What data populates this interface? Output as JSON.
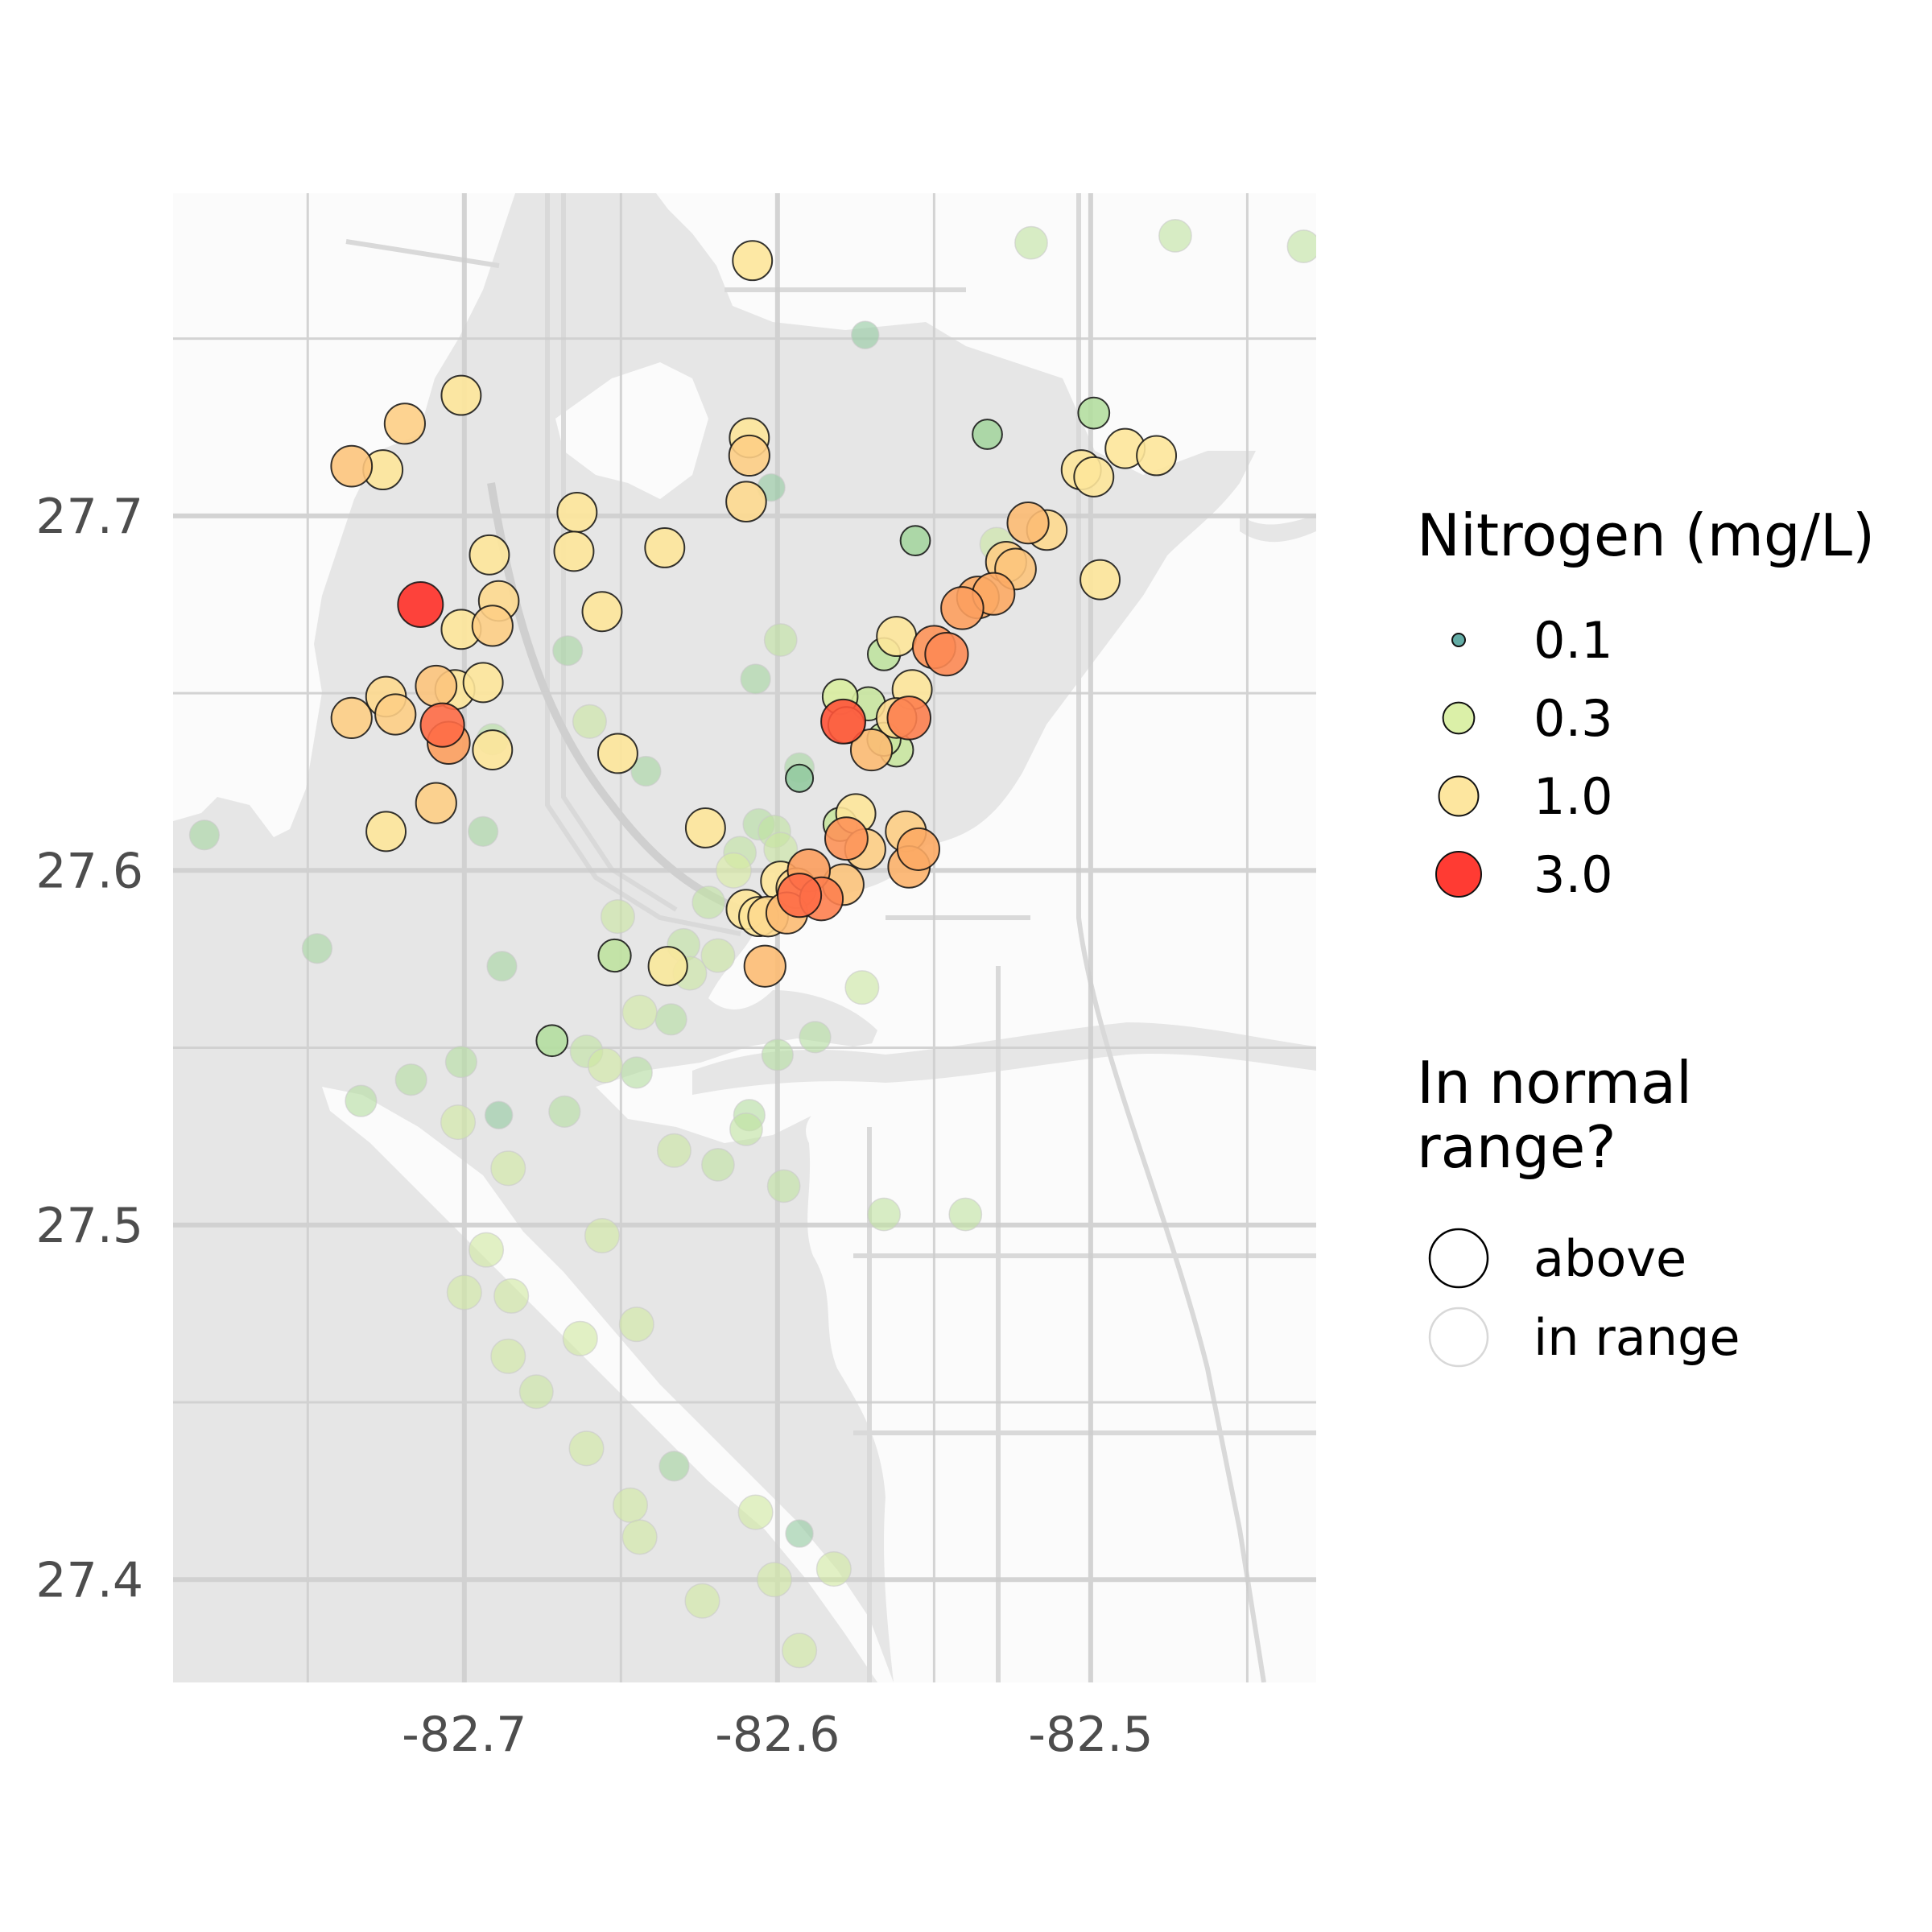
{
  "chart_data": {
    "type": "scatter",
    "xlim": [
      -82.793,
      -82.428
    ],
    "ylim": [
      27.371,
      27.791
    ],
    "x_ticks": [
      {
        "value": -82.7,
        "label": "-82.7"
      },
      {
        "value": -82.6,
        "label": "-82.6"
      },
      {
        "value": -82.5,
        "label": "-82.5"
      }
    ],
    "y_ticks": [
      {
        "value": 27.4,
        "label": "27.4"
      },
      {
        "value": 27.5,
        "label": "27.5"
      },
      {
        "value": 27.6,
        "label": "27.6"
      },
      {
        "value": 27.7,
        "label": "27.7"
      }
    ],
    "grid": true,
    "legend_placement": "right",
    "legends": {
      "size_color": {
        "title": "Nitrogen (mg/L)",
        "entries": [
          {
            "label": "0.1",
            "value": 0.1,
            "color": "#5ba8a0"
          },
          {
            "label": "0.3",
            "value": 0.3,
            "color": "#d9efa3"
          },
          {
            "label": "1.0",
            "value": 1.0,
            "color": "#fde59a"
          },
          {
            "label": "3.0",
            "value": 3.0,
            "color": "#ff3028"
          }
        ]
      },
      "outline": {
        "title_lines": [
          "In normal",
          "range?"
        ],
        "entries": [
          {
            "label": "above",
            "stroke": "#000000"
          },
          {
            "label": "in range",
            "stroke": "#d8d8d8"
          }
        ]
      }
    },
    "points": [
      {
        "lon": -82.608,
        "lat": 27.772,
        "n": 1.0,
        "above": true
      },
      {
        "lon": -82.572,
        "lat": 27.751,
        "n": 0.2,
        "above": false
      },
      {
        "lon": -82.519,
        "lat": 27.777,
        "n": 0.35,
        "above": false
      },
      {
        "lon": -82.473,
        "lat": 27.779,
        "n": 0.35,
        "above": false
      },
      {
        "lon": -82.432,
        "lat": 27.776,
        "n": 0.35,
        "above": false
      },
      {
        "lon": -82.701,
        "lat": 27.734,
        "n": 1.0,
        "above": true
      },
      {
        "lon": -82.719,
        "lat": 27.726,
        "n": 1.2,
        "above": true
      },
      {
        "lon": -82.736,
        "lat": 27.714,
        "n": 1.3,
        "above": true
      },
      {
        "lon": -82.726,
        "lat": 27.713,
        "n": 1.0,
        "above": true
      },
      {
        "lon": -82.609,
        "lat": 27.722,
        "n": 1.0,
        "above": true
      },
      {
        "lon": -82.609,
        "lat": 27.717,
        "n": 1.2,
        "above": true
      },
      {
        "lon": -82.602,
        "lat": 27.708,
        "n": 0.2,
        "above": false
      },
      {
        "lon": -82.61,
        "lat": 27.704,
        "n": 1.1,
        "above": true
      },
      {
        "lon": -82.533,
        "lat": 27.723,
        "n": 0.25,
        "above": true
      },
      {
        "lon": -82.499,
        "lat": 27.729,
        "n": 0.3,
        "above": true
      },
      {
        "lon": -82.489,
        "lat": 27.719,
        "n": 1.0,
        "above": true
      },
      {
        "lon": -82.479,
        "lat": 27.717,
        "n": 1.0,
        "above": true
      },
      {
        "lon": -82.503,
        "lat": 27.713,
        "n": 1.0,
        "above": true
      },
      {
        "lon": -82.499,
        "lat": 27.711,
        "n": 1.0,
        "above": true
      },
      {
        "lon": -82.664,
        "lat": 27.701,
        "n": 1.0,
        "above": true
      },
      {
        "lon": -82.665,
        "lat": 27.69,
        "n": 1.0,
        "above": true
      },
      {
        "lon": -82.636,
        "lat": 27.691,
        "n": 1.0,
        "above": true
      },
      {
        "lon": -82.692,
        "lat": 27.689,
        "n": 1.0,
        "above": true
      },
      {
        "lon": -82.556,
        "lat": 27.693,
        "n": 0.25,
        "above": true
      },
      {
        "lon": -82.53,
        "lat": 27.692,
        "n": 0.4,
        "above": false
      },
      {
        "lon": -82.52,
        "lat": 27.698,
        "n": 1.4,
        "above": true
      },
      {
        "lon": -82.514,
        "lat": 27.696,
        "n": 1.1,
        "above": true
      },
      {
        "lon": -82.527,
        "lat": 27.687,
        "n": 1.2,
        "above": true
      },
      {
        "lon": -82.524,
        "lat": 27.685,
        "n": 1.3,
        "above": true
      },
      {
        "lon": -82.497,
        "lat": 27.682,
        "n": 1.0,
        "above": true
      },
      {
        "lon": -82.714,
        "lat": 27.675,
        "n": 3.0,
        "above": true
      },
      {
        "lon": -82.689,
        "lat": 27.676,
        "n": 1.1,
        "above": true
      },
      {
        "lon": -82.656,
        "lat": 27.673,
        "n": 1.0,
        "above": true
      },
      {
        "lon": -82.536,
        "lat": 27.677,
        "n": 1.6,
        "above": true
      },
      {
        "lon": -82.541,
        "lat": 27.674,
        "n": 1.7,
        "above": true
      },
      {
        "lon": -82.531,
        "lat": 27.678,
        "n": 1.6,
        "above": true
      },
      {
        "lon": -82.701,
        "lat": 27.668,
        "n": 1.0,
        "above": true
      },
      {
        "lon": -82.691,
        "lat": 27.669,
        "n": 1.2,
        "above": true
      },
      {
        "lon": -82.667,
        "lat": 27.662,
        "n": 0.25,
        "above": false
      },
      {
        "lon": -82.599,
        "lat": 27.665,
        "n": 0.35,
        "above": false
      },
      {
        "lon": -82.566,
        "lat": 27.661,
        "n": 0.35,
        "above": true
      },
      {
        "lon": -82.562,
        "lat": 27.666,
        "n": 1.0,
        "above": true
      },
      {
        "lon": -82.55,
        "lat": 27.663,
        "n": 1.8,
        "above": true
      },
      {
        "lon": -82.546,
        "lat": 27.661,
        "n": 1.9,
        "above": true
      },
      {
        "lon": -82.607,
        "lat": 27.654,
        "n": 0.25,
        "above": false
      },
      {
        "lon": -82.709,
        "lat": 27.652,
        "n": 1.3,
        "above": true
      },
      {
        "lon": -82.703,
        "lat": 27.651,
        "n": 1.0,
        "above": true
      },
      {
        "lon": -82.694,
        "lat": 27.653,
        "n": 1.0,
        "above": true
      },
      {
        "lon": -82.725,
        "lat": 27.649,
        "n": 1.1,
        "above": true
      },
      {
        "lon": -82.722,
        "lat": 27.644,
        "n": 1.2,
        "above": true
      },
      {
        "lon": -82.736,
        "lat": 27.643,
        "n": 1.2,
        "above": true
      },
      {
        "lon": -82.707,
        "lat": 27.641,
        "n": 2.2,
        "above": true
      },
      {
        "lon": -82.705,
        "lat": 27.636,
        "n": 1.7,
        "above": true
      },
      {
        "lon": -82.691,
        "lat": 27.634,
        "n": 1.0,
        "above": true
      },
      {
        "lon": -82.691,
        "lat": 27.637,
        "n": 0.3,
        "above": false
      },
      {
        "lon": -82.58,
        "lat": 27.649,
        "n": 0.5,
        "above": true
      },
      {
        "lon": -82.579,
        "lat": 27.642,
        "n": 2.5,
        "above": true
      },
      {
        "lon": -82.578,
        "lat": 27.641,
        "n": 0.6,
        "above": true
      },
      {
        "lon": -82.571,
        "lat": 27.647,
        "n": 0.4,
        "above": true
      },
      {
        "lon": -82.557,
        "lat": 27.651,
        "n": 1.0,
        "above": true
      },
      {
        "lon": -82.562,
        "lat": 27.643,
        "n": 1.1,
        "above": true
      },
      {
        "lon": -82.558,
        "lat": 27.643,
        "n": 2.0,
        "above": true
      },
      {
        "lon": -82.562,
        "lat": 27.634,
        "n": 0.4,
        "above": true
      },
      {
        "lon": -82.566,
        "lat": 27.637,
        "n": 0.4,
        "above": true
      },
      {
        "lon": -82.57,
        "lat": 27.634,
        "n": 1.4,
        "above": true
      },
      {
        "lon": -82.66,
        "lat": 27.642,
        "n": 0.4,
        "above": false
      },
      {
        "lon": -82.651,
        "lat": 27.633,
        "n": 1.0,
        "above": true
      },
      {
        "lon": -82.642,
        "lat": 27.628,
        "n": 0.25,
        "above": false
      },
      {
        "lon": -82.593,
        "lat": 27.629,
        "n": 0.25,
        "above": false
      },
      {
        "lon": -82.593,
        "lat": 27.626,
        "n": 0.2,
        "above": true
      },
      {
        "lon": -82.709,
        "lat": 27.619,
        "n": 1.2,
        "above": true
      },
      {
        "lon": -82.725,
        "lat": 27.611,
        "n": 1.0,
        "above": true
      },
      {
        "lon": -82.694,
        "lat": 27.611,
        "n": 0.25,
        "above": false
      },
      {
        "lon": -82.783,
        "lat": 27.61,
        "n": 0.25,
        "above": false
      },
      {
        "lon": -82.623,
        "lat": 27.612,
        "n": 1.0,
        "above": true
      },
      {
        "lon": -82.606,
        "lat": 27.613,
        "n": 0.3,
        "above": false
      },
      {
        "lon": -82.601,
        "lat": 27.611,
        "n": 0.35,
        "above": false
      },
      {
        "lon": -82.58,
        "lat": 27.613,
        "n": 0.4,
        "above": true
      },
      {
        "lon": -82.575,
        "lat": 27.616,
        "n": 1.0,
        "above": true
      },
      {
        "lon": -82.578,
        "lat": 27.609,
        "n": 1.8,
        "above": true
      },
      {
        "lon": -82.572,
        "lat": 27.606,
        "n": 1.2,
        "above": true
      },
      {
        "lon": -82.559,
        "lat": 27.611,
        "n": 1.2,
        "above": true
      },
      {
        "lon": -82.555,
        "lat": 27.606,
        "n": 1.6,
        "above": true
      },
      {
        "lon": -82.558,
        "lat": 27.601,
        "n": 1.5,
        "above": true
      },
      {
        "lon": -82.599,
        "lat": 27.606,
        "n": 0.4,
        "above": false
      },
      {
        "lon": -82.612,
        "lat": 27.605,
        "n": 0.35,
        "above": false
      },
      {
        "lon": -82.614,
        "lat": 27.6,
        "n": 0.5,
        "above": false
      },
      {
        "lon": -82.59,
        "lat": 27.6,
        "n": 1.7,
        "above": true
      },
      {
        "lon": -82.599,
        "lat": 27.597,
        "n": 1.0,
        "above": true
      },
      {
        "lon": -82.594,
        "lat": 27.595,
        "n": 1.1,
        "above": true
      },
      {
        "lon": -82.579,
        "lat": 27.596,
        "n": 1.3,
        "above": true
      },
      {
        "lon": -82.593,
        "lat": 27.593,
        "n": 2.2,
        "above": true
      },
      {
        "lon": -82.586,
        "lat": 27.592,
        "n": 2.0,
        "above": true
      },
      {
        "lon": -82.622,
        "lat": 27.591,
        "n": 0.35,
        "above": false
      },
      {
        "lon": -82.61,
        "lat": 27.589,
        "n": 1.0,
        "above": true
      },
      {
        "lon": -82.606,
        "lat": 27.587,
        "n": 1.0,
        "above": true
      },
      {
        "lon": -82.603,
        "lat": 27.587,
        "n": 1.1,
        "above": true
      },
      {
        "lon": -82.597,
        "lat": 27.588,
        "n": 1.4,
        "above": true
      },
      {
        "lon": -82.651,
        "lat": 27.587,
        "n": 0.4,
        "above": false
      },
      {
        "lon": -82.747,
        "lat": 27.578,
        "n": 0.25,
        "above": false
      },
      {
        "lon": -82.63,
        "lat": 27.579,
        "n": 0.35,
        "above": false
      },
      {
        "lon": -82.652,
        "lat": 27.576,
        "n": 0.35,
        "above": true
      },
      {
        "lon": -82.619,
        "lat": 27.576,
        "n": 0.4,
        "above": false
      },
      {
        "lon": -82.688,
        "lat": 27.573,
        "n": 0.25,
        "above": false
      },
      {
        "lon": -82.628,
        "lat": 27.571,
        "n": 0.4,
        "above": false
      },
      {
        "lon": -82.635,
        "lat": 27.573,
        "n": 0.9,
        "above": true
      },
      {
        "lon": -82.604,
        "lat": 27.573,
        "n": 1.4,
        "above": true
      },
      {
        "lon": -82.573,
        "lat": 27.567,
        "n": 0.4,
        "above": false
      },
      {
        "lon": -82.644,
        "lat": 27.56,
        "n": 0.45,
        "above": false
      },
      {
        "lon": -82.634,
        "lat": 27.558,
        "n": 0.3,
        "above": false
      },
      {
        "lon": -82.672,
        "lat": 27.552,
        "n": 0.3,
        "above": true
      },
      {
        "lon": -82.661,
        "lat": 27.549,
        "n": 0.35,
        "above": false
      },
      {
        "lon": -82.655,
        "lat": 27.545,
        "n": 0.45,
        "above": false
      },
      {
        "lon": -82.645,
        "lat": 27.543,
        "n": 0.3,
        "above": false
      },
      {
        "lon": -82.6,
        "lat": 27.548,
        "n": 0.3,
        "above": false
      },
      {
        "lon": -82.588,
        "lat": 27.553,
        "n": 0.3,
        "above": false
      },
      {
        "lon": -82.701,
        "lat": 27.546,
        "n": 0.3,
        "above": false
      },
      {
        "lon": -82.717,
        "lat": 27.541,
        "n": 0.3,
        "above": false
      },
      {
        "lon": -82.733,
        "lat": 27.535,
        "n": 0.3,
        "above": false
      },
      {
        "lon": -82.668,
        "lat": 27.532,
        "n": 0.3,
        "above": false
      },
      {
        "lon": -82.689,
        "lat": 27.531,
        "n": 0.2,
        "above": false
      },
      {
        "lon": -82.702,
        "lat": 27.529,
        "n": 0.45,
        "above": false
      },
      {
        "lon": -82.609,
        "lat": 27.531,
        "n": 0.3,
        "above": false
      },
      {
        "lon": -82.61,
        "lat": 27.527,
        "n": 0.35,
        "above": false
      },
      {
        "lon": -82.633,
        "lat": 27.521,
        "n": 0.4,
        "above": false
      },
      {
        "lon": -82.619,
        "lat": 27.517,
        "n": 0.35,
        "above": false
      },
      {
        "lon": -82.686,
        "lat": 27.516,
        "n": 0.45,
        "above": false
      },
      {
        "lon": -82.598,
        "lat": 27.511,
        "n": 0.35,
        "above": false
      },
      {
        "lon": -82.566,
        "lat": 27.503,
        "n": 0.35,
        "above": false
      },
      {
        "lon": -82.54,
        "lat": 27.503,
        "n": 0.35,
        "above": false
      },
      {
        "lon": -82.656,
        "lat": 27.497,
        "n": 0.45,
        "above": false
      },
      {
        "lon": -82.693,
        "lat": 27.493,
        "n": 0.45,
        "above": false
      },
      {
        "lon": -82.7,
        "lat": 27.481,
        "n": 0.45,
        "above": false
      },
      {
        "lon": -82.685,
        "lat": 27.48,
        "n": 0.45,
        "above": false
      },
      {
        "lon": -82.645,
        "lat": 27.472,
        "n": 0.45,
        "above": false
      },
      {
        "lon": -82.663,
        "lat": 27.468,
        "n": 0.45,
        "above": false
      },
      {
        "lon": -82.686,
        "lat": 27.463,
        "n": 0.45,
        "above": false
      },
      {
        "lon": -82.677,
        "lat": 27.453,
        "n": 0.4,
        "above": false
      },
      {
        "lon": -82.661,
        "lat": 27.437,
        "n": 0.45,
        "above": false
      },
      {
        "lon": -82.633,
        "lat": 27.432,
        "n": 0.25,
        "above": false
      },
      {
        "lon": -82.647,
        "lat": 27.421,
        "n": 0.45,
        "above": false
      },
      {
        "lon": -82.607,
        "lat": 27.419,
        "n": 0.45,
        "above": false
      },
      {
        "lon": -82.593,
        "lat": 27.413,
        "n": 0.2,
        "above": false
      },
      {
        "lon": -82.644,
        "lat": 27.412,
        "n": 0.45,
        "above": false
      },
      {
        "lon": -82.582,
        "lat": 27.403,
        "n": 0.45,
        "above": false
      },
      {
        "lon": -82.601,
        "lat": 27.4,
        "n": 0.45,
        "above": false
      },
      {
        "lon": -82.624,
        "lat": 27.394,
        "n": 0.45,
        "above": false
      },
      {
        "lon": -82.593,
        "lat": 27.38,
        "n": 0.45,
        "above": false
      }
    ]
  }
}
